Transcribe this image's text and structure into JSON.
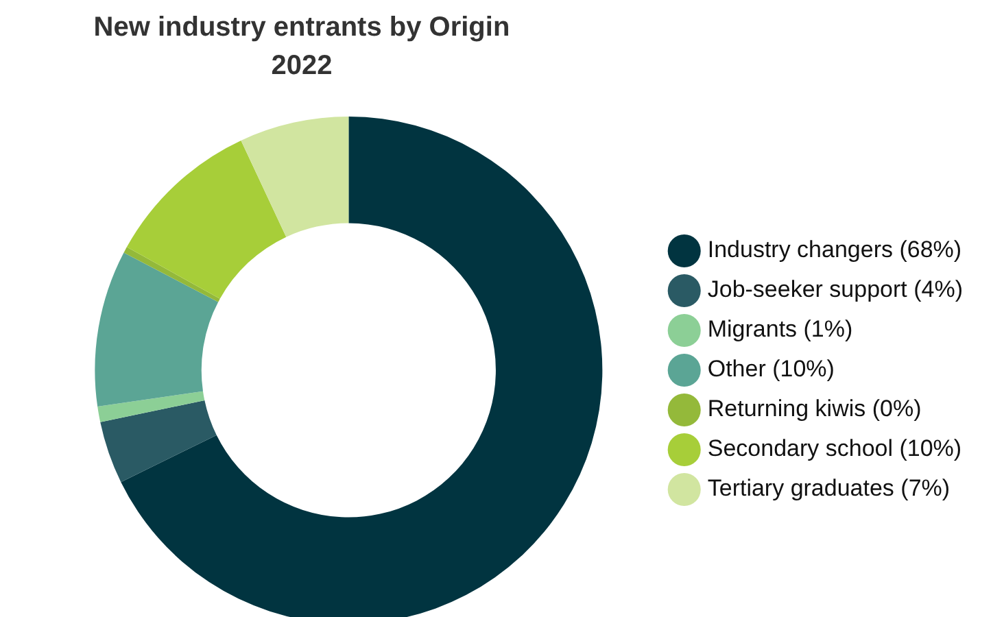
{
  "chart_data": {
    "type": "donut",
    "title": "New industry entrants by Origin 2022",
    "categories": [
      "Industry changers (68%)",
      "Job-seeker support (4%)",
      "Migrants (1%)",
      "Other (10%)",
      "Returning kiwis (0%)",
      "Secondary school (10%)",
      "Tertiary graduates (7%)"
    ],
    "values": [
      68,
      4,
      1,
      10,
      0.4,
      10,
      7
    ],
    "colors": [
      "#013440",
      "#2a5a64",
      "#8ccf96",
      "#5ba595",
      "#94b93a",
      "#a7ce39",
      "#d1e5a0"
    ],
    "legend": "right"
  }
}
